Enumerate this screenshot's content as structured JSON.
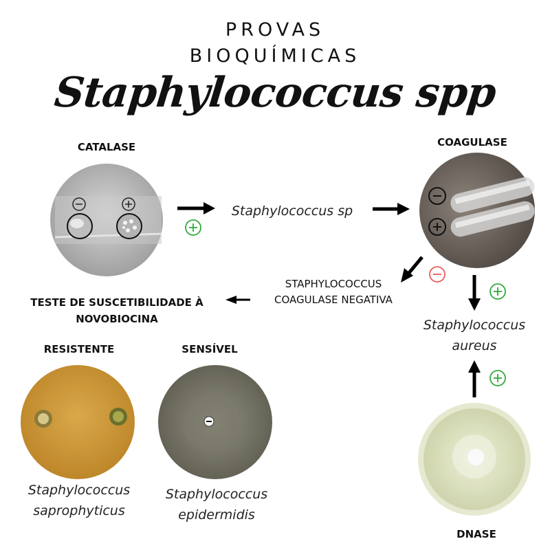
{
  "title": {
    "line1": "PROVAS",
    "line2": "BIOQUÍMICAS",
    "script": "Staphylococcus spp"
  },
  "nodes": {
    "catalase": {
      "label": "CATALASE",
      "minus": "−",
      "plus": "+"
    },
    "staph_sp": {
      "label": "Staphylococcus sp"
    },
    "coagulase": {
      "label": "COAGULASE"
    },
    "coag_negativa": {
      "line1": "STAPHYLOCOCCUS",
      "line2": "COAGULASE NEGATIVA"
    },
    "novobiocina": {
      "line1": "TESTE DE SUSCETIBILIDADE À",
      "line2": "NOVOBIOCINA"
    },
    "resistente": {
      "label": "RESISTENTE",
      "species_line1": "Staphylococcus",
      "species_line2": "saprophyticus"
    },
    "sensivel": {
      "label": "SENSÍVEL",
      "species_line1": "Staphylococcus",
      "species_line2": "epidermidis"
    },
    "aureus": {
      "line1": "Staphylococcus",
      "line2": "aureus"
    },
    "dnase": {
      "label": "DNASE"
    }
  },
  "symbols": {
    "positive": "+",
    "negative": "−"
  },
  "colors": {
    "positive": "#2eaa3a",
    "negative": "#e85a5a",
    "arrow": "#000000"
  }
}
